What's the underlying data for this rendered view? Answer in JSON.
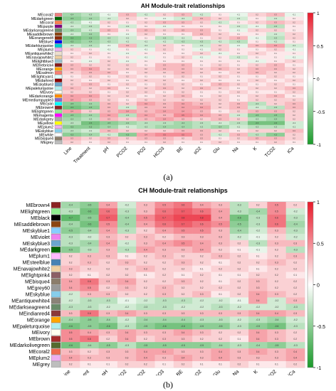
{
  "figure": {
    "caption_a": "(a)",
    "caption_b": "(b)"
  },
  "chart_data": [
    {
      "type": "heatmap",
      "title": "AH Module-trait relationships",
      "xlabel": "",
      "ylabel": "",
      "columns": [
        "Line",
        "Treatment",
        "pH",
        "PCO2",
        "PO2",
        "HCO3",
        "BE",
        "sO2",
        "Glu",
        "Na",
        "K",
        "TCO2",
        "iCa"
      ],
      "rows": [
        "MEcoral2",
        "MEdarkgreen",
        "MEcoral",
        "MEpurple",
        "MEdarkseagreen4",
        "MEsaddlebrown",
        "MEorangered4",
        "MEblue2",
        "MEdarkturquoise",
        "MEplum3",
        "MEantiquewhite2",
        "MEnavajowhite2",
        "MElightblue3",
        "MEfirebrick4",
        "MEorange",
        "MEsalmon",
        "MElightcyan1",
        "MEdarkred",
        "MEskyblue3",
        "MEpaleturquoise",
        "MEivory",
        "MEdarkorange",
        "MEmediumpurple3",
        "MEcyan",
        "MEbrown4",
        "MElightgreen",
        "MEmagenta",
        "MEdarkgrey",
        "MEyellow",
        "MEplum2",
        "MEskyblue",
        "MEwhite",
        "MEbisque4",
        "MEgrey"
      ],
      "row_colors": [
        "#F08080",
        "#006400",
        "#FF7F50",
        "#800080",
        "#698B69",
        "#8B4513",
        "#8B2500",
        "#0000EE",
        "#00CED1",
        "#EEAEEE",
        "#EEDFCC",
        "#EECFA1",
        "#9AC0CD",
        "#8B1A1A",
        "#FFA500",
        "#FA8072",
        "#E0FFFF",
        "#8B0000",
        "#6CA6CD",
        "#AFEEEE",
        "#FFFFF0",
        "#FF8C00",
        "#8968CD",
        "#00FFFF",
        "#8B2323",
        "#90EE90",
        "#FF00FF",
        "#A9A9A9",
        "#FFFF00",
        "#EEAEEE",
        "#87CEEB",
        "#FFFFFF",
        "#8B7D6B",
        "#BEBEBE"
      ],
      "scale": {
        "min": -1,
        "max": 1,
        "ticks": [
          1,
          0.5,
          0,
          -0.5,
          -1
        ],
        "colors": [
          "#1a9a2a",
          "#ffffff",
          "#e8192a"
        ]
      },
      "values": [
        [
          -0.4,
          -0.3,
          -0.1,
          0.3,
          -0.2,
          0.2,
          0.3,
          -0.2,
          0.1,
          -0.1,
          0.2,
          0.3,
          -0.1
        ],
        [
          -0.5,
          -0.4,
          -0.2,
          0.2,
          0.1,
          -0.1,
          -0.2,
          0.3,
          0.2,
          -0.2,
          0.1,
          -0.2,
          0.1
        ],
        [
          -0.3,
          -0.1,
          0.2,
          0.1,
          0.2,
          0.3,
          0.3,
          0.2,
          -0.2,
          0.1,
          0.2,
          0.3,
          0.2
        ],
        [
          -0.2,
          -0.3,
          0.1,
          -0.2,
          0.1,
          -0.1,
          0.1,
          0.1,
          0.1,
          -0.2,
          -0.1,
          -0.3,
          0.1
        ],
        [
          -0.4,
          -0.2,
          0.3,
          0.1,
          0.3,
          0.2,
          0.3,
          0.3,
          0.1,
          -0.1,
          0.2,
          0.2,
          0.1
        ],
        [
          -0.2,
          -0.4,
          0.1,
          -0.1,
          0.2,
          0.1,
          0.1,
          0.3,
          0.2,
          0.1,
          0.1,
          -0.2,
          0.2
        ],
        [
          -0.6,
          -0.5,
          -0.3,
          -0.2,
          0.1,
          -0.3,
          -0.2,
          0.1,
          0.2,
          0.3,
          -0.1,
          -0.3,
          0.2
        ],
        [
          -0.5,
          -0.4,
          -0.3,
          -0.2,
          -0.2,
          -0.2,
          -0.3,
          -0.3,
          -0.2,
          -0.3,
          0.1,
          -0.2,
          0.1
        ],
        [
          -0.2,
          -0.3,
          -0.1,
          0.3,
          -0.2,
          0.2,
          0.1,
          -0.2,
          0.2,
          -0.1,
          0.3,
          0.4,
          -0.2
        ],
        [
          0.2,
          0.1,
          -0.1,
          0.1,
          -0.1,
          0.2,
          0.1,
          -0.1,
          0.2,
          0.1,
          0.1,
          0.2,
          -0.1
        ],
        [
          0.1,
          0.2,
          0.1,
          -0.1,
          0.1,
          0.1,
          0.1,
          0.2,
          -0.1,
          0.1,
          0.2,
          0.1,
          0.1
        ],
        [
          0.2,
          0.1,
          0.1,
          0.1,
          -0.1,
          0.1,
          0.2,
          -0.1,
          0.1,
          -0.2,
          0.1,
          0.1,
          -0.1
        ],
        [
          0.1,
          -0.1,
          0.2,
          -0.1,
          0.1,
          0.1,
          0.1,
          0.1,
          0.1,
          0.1,
          -0.1,
          0.1,
          0.2
        ],
        [
          0.3,
          0.2,
          0.2,
          0.2,
          0.1,
          0.3,
          0.3,
          0.1,
          0.2,
          0.1,
          0.2,
          0.3,
          0.1
        ],
        [
          0.3,
          0.4,
          0.2,
          0.2,
          0.2,
          0.3,
          0.3,
          0.2,
          0.3,
          0.2,
          0.3,
          0.3,
          0.2
        ],
        [
          0.2,
          0.3,
          0.3,
          0.1,
          0.2,
          0.2,
          0.3,
          0.2,
          0.1,
          0.2,
          0.3,
          0.2,
          0.2
        ],
        [
          0.1,
          0.2,
          0.1,
          0.2,
          0.1,
          0.1,
          0.2,
          0.1,
          0.2,
          0.1,
          0.1,
          0.2,
          0.1
        ],
        [
          0.2,
          0.1,
          0.2,
          0.1,
          0.2,
          0.2,
          0.1,
          0.2,
          0.1,
          0.1,
          0.2,
          0.1,
          0.2
        ],
        [
          0.2,
          0.3,
          0.1,
          0.2,
          0.1,
          0.2,
          0.2,
          0.1,
          0.3,
          0.2,
          0.1,
          0.2,
          0.1
        ],
        [
          0.3,
          0.2,
          0.3,
          0.1,
          0.2,
          0.3,
          0.2,
          0.3,
          0.2,
          0.1,
          0.2,
          0.2,
          0.3
        ],
        [
          0.2,
          0.2,
          0.1,
          0.2,
          0.2,
          0.1,
          0.2,
          0.1,
          0.1,
          0.2,
          0.1,
          0.1,
          0.2
        ],
        [
          0.4,
          0.4,
          0.2,
          0.2,
          0.1,
          0.2,
          0.3,
          0.1,
          0.2,
          0.1,
          0.2,
          0.3,
          0.1
        ],
        [
          0.4,
          0.3,
          0.2,
          0.1,
          0.2,
          0.2,
          0.2,
          0.2,
          0.2,
          0.1,
          0.2,
          0.2,
          0.2
        ],
        [
          -0.5,
          -0.4,
          0.3,
          0.2,
          0.4,
          0.3,
          0.4,
          0.3,
          0.2,
          0.3,
          -0.3,
          0.2,
          0.3
        ],
        [
          -0.6,
          -0.5,
          0.3,
          -0.2,
          0.3,
          0.3,
          0.4,
          0.4,
          0.2,
          0.3,
          -0.2,
          -0.3,
          0.3
        ],
        [
          0.4,
          0.2,
          0.3,
          0.4,
          0.3,
          0.4,
          0.4,
          0.3,
          0.1,
          0.2,
          0.3,
          0.3,
          0.2
        ],
        [
          -0.5,
          -0.4,
          0.4,
          -0.3,
          0.4,
          0.3,
          0.5,
          0.4,
          0.3,
          -0.2,
          -0.5,
          -0.5,
          0.2
        ],
        [
          -0.4,
          -0.3,
          0.3,
          0.2,
          0.3,
          0.4,
          0.3,
          0.2,
          0.3,
          0.2,
          -0.3,
          -0.4,
          0.2
        ],
        [
          -0.3,
          -0.6,
          -0.5,
          -0.4,
          -0.3,
          -0.3,
          -0.4,
          -0.3,
          -0.2,
          -0.3,
          -0.6,
          -0.6,
          -0.2
        ],
        [
          -0.5,
          -0.5,
          -0.4,
          -0.2,
          -0.3,
          -0.4,
          -0.4,
          -0.3,
          -0.4,
          -0.2,
          -0.3,
          -0.3,
          -0.2
        ],
        [
          -0.3,
          -0.2,
          0.3,
          0.2,
          0.2,
          0.2,
          0.3,
          0.3,
          0.2,
          0.1,
          0.2,
          0.2,
          0.3
        ],
        [
          -0.5,
          -0.4,
          -0.2,
          -0.5,
          0.4,
          0.5,
          0.5,
          0.3,
          -0.2,
          0.3,
          -0.3,
          -0.5,
          0.2
        ],
        [
          0.3,
          0.2,
          0.3,
          0.2,
          0.3,
          0.3,
          0.2,
          0.3,
          0.1,
          0.2,
          0.3,
          0.3,
          0.2
        ],
        [
          0.2,
          0.1,
          0.2,
          0.1,
          0.1,
          0.2,
          0.1,
          0.1,
          0.2,
          0.1,
          0.1,
          0.2,
          0.1
        ]
      ]
    },
    {
      "type": "heatmap",
      "title": "CH Module-trait relationships",
      "xlabel": "",
      "ylabel": "",
      "columns": [
        "Line",
        "Treatment",
        "pH",
        "PCO2",
        "PO2",
        "HCO3",
        "BE",
        "sO2",
        "Glu",
        "Na",
        "K",
        "TCO2",
        "iCa"
      ],
      "rows": [
        "MEbrown4",
        "MElightgreen",
        "MEblack",
        "MEsaddlebrown",
        "MEskyblue1",
        "MEviolet",
        "MEskyblue3",
        "MEdarkgreen",
        "MEplum1",
        "MEsteelblue",
        "MEnavajowhite2",
        "MElightpink4",
        "MEbisque4",
        "MEgrey60",
        "MEskyblue",
        "MEantiquewhite4",
        "MEdarkseagreen4",
        "MEindianred4",
        "MEorange",
        "MEpaleturquoise",
        "MEivory",
        "MEbrown",
        "MEdarkolivegreen",
        "MEcoral2",
        "MEplum2",
        "MEgrey"
      ],
      "row_colors": [
        "#8B2323",
        "#90EE90",
        "#000000",
        "#8B4513",
        "#87CEFF",
        "#EE82EE",
        "#6CA6CD",
        "#006400",
        "#FFBBFF",
        "#4682B4",
        "#EECFA1",
        "#8B5F65",
        "#8B7D6B",
        "#999999",
        "#87CEEB",
        "#8B8378",
        "#698B69",
        "#8B3A3A",
        "#FFA500",
        "#AFEEEE",
        "#FFFFF0",
        "#A52A2A",
        "#556B2F",
        "#EE6A50",
        "#EEAEEE",
        "#BEBEBE"
      ],
      "scale": {
        "min": -1,
        "max": 1,
        "ticks": [
          1,
          0.5,
          0,
          -0.5,
          -1
        ],
        "colors": [
          "#1a9a2a",
          "#ffffff",
          "#e8192a"
        ]
      },
      "values": [
        [
          -0.4,
          -0.5,
          0.4,
          -0.2,
          0.3,
          0.5,
          0.6,
          0.4,
          0.3,
          -0.3,
          0.2,
          0.5,
          0.2
        ],
        [
          -0.3,
          -0.6,
          0.6,
          -0.3,
          0.3,
          0.6,
          0.7,
          0.6,
          0.4,
          -0.3,
          -0.4,
          0.5,
          -0.2
        ],
        [
          -0.7,
          -0.5,
          0.7,
          -0.4,
          0.5,
          0.7,
          0.8,
          0.8,
          0.4,
          -0.6,
          -0.3,
          0.6,
          -0.3
        ],
        [
          -0.4,
          -0.6,
          0.5,
          -0.4,
          0.4,
          0.6,
          0.7,
          0.6,
          0.5,
          -0.5,
          -0.3,
          0.6,
          -0.4
        ],
        [
          -0.5,
          -0.4,
          0.4,
          -0.3,
          0.2,
          0.4,
          0.5,
          0.5,
          0.3,
          -0.4,
          -0.2,
          0.3,
          -0.3
        ],
        [
          -0.3,
          -0.2,
          0.3,
          0.2,
          0.3,
          0.2,
          0.3,
          0.3,
          0.3,
          -0.2,
          -0.1,
          0.2,
          -0.2
        ],
        [
          -0.3,
          -0.4,
          0.4,
          -0.2,
          0.3,
          0.4,
          0.5,
          0.4,
          0.3,
          0.2,
          -0.3,
          0.3,
          0.3
        ],
        [
          -0.5,
          -0.3,
          0.3,
          -0.3,
          0.4,
          0.3,
          0.3,
          0.4,
          0.2,
          0.1,
          -0.1,
          0.2,
          -0.3
        ],
        [
          0.2,
          0.3,
          0.3,
          0.1,
          0.2,
          0.3,
          0.2,
          0.2,
          0.3,
          0.2,
          0.1,
          0.2,
          0.3
        ],
        [
          0.2,
          0.3,
          0.2,
          0.3,
          0.2,
          0.2,
          0.3,
          0.2,
          0.1,
          0.2,
          0.2,
          0.3,
          0.2
        ],
        [
          0.3,
          0.2,
          0.2,
          0.2,
          0.3,
          0.2,
          0.2,
          0.1,
          0.2,
          0.2,
          0.1,
          0.2,
          0.2
        ],
        [
          0.2,
          0.1,
          0.2,
          0.2,
          0.1,
          0.2,
          0.1,
          0.2,
          0.1,
          0.1,
          0.2,
          0.2,
          0.1
        ],
        [
          0.4,
          0.6,
          0.3,
          0.4,
          0.2,
          0.2,
          0.3,
          0.2,
          0.1,
          0.2,
          0.3,
          0.2,
          0.2
        ],
        [
          0.4,
          0.5,
          0.2,
          0.3,
          0.2,
          0.3,
          0.2,
          0.2,
          0.2,
          0.2,
          0.3,
          0.2,
          0.2
        ],
        [
          -0.2,
          0.3,
          0.3,
          0.2,
          0.2,
          0.3,
          0.2,
          0.3,
          0.1,
          0.2,
          0.4,
          0.3,
          0.2
        ],
        [
          -0.2,
          -0.3,
          -0.3,
          -0.1,
          -0.2,
          -0.3,
          -0.3,
          -0.2,
          -0.2,
          -0.1,
          0.4,
          -0.2,
          0.3
        ],
        [
          -0.3,
          -0.3,
          -0.2,
          -0.2,
          -0.3,
          -0.3,
          -0.2,
          -0.2,
          -0.3,
          -0.2,
          -0.2,
          -0.2,
          -0.3
        ],
        [
          0.3,
          0.6,
          0.3,
          0.4,
          0.3,
          0.3,
          0.3,
          0.3,
          0.3,
          0.3,
          0.4,
          0.4,
          0.3
        ],
        [
          -0.4,
          -0.5,
          -0.4,
          -0.2,
          -0.4,
          -0.4,
          -0.4,
          -0.3,
          -0.3,
          -0.2,
          -0.3,
          -0.4,
          -0.2
        ],
        [
          -0.6,
          -0.5,
          -0.6,
          -0.3,
          -0.5,
          -0.6,
          -0.6,
          -0.5,
          -0.5,
          -0.3,
          -0.5,
          -0.6,
          -0.3
        ],
        [
          0.5,
          0.4,
          0.3,
          0.4,
          0.3,
          0.3,
          0.4,
          0.3,
          0.2,
          0.2,
          0.4,
          0.3,
          0.2
        ],
        [
          0.5,
          0.6,
          0.2,
          0.4,
          0.2,
          0.3,
          0.3,
          0.2,
          0.2,
          0.1,
          0.4,
          0.3,
          0.2
        ],
        [
          -0.6,
          -0.4,
          -0.5,
          -0.3,
          -0.5,
          -0.5,
          -0.5,
          -0.5,
          -0.4,
          -0.3,
          -0.4,
          -0.5,
          -0.3
        ],
        [
          0.3,
          0.2,
          0.3,
          0.3,
          0.4,
          0.4,
          0.3,
          0.3,
          0.4,
          0.3,
          0.4,
          0.3,
          0.4
        ],
        [
          0.4,
          0.3,
          0.3,
          0.3,
          0.4,
          0.3,
          0.4,
          0.3,
          0.4,
          0.3,
          0.3,
          0.3,
          0.4
        ],
        [
          0.2,
          0.1,
          0.1,
          0.2,
          0.2,
          0.1,
          0.2,
          0.1,
          0.1,
          0.2,
          0.1,
          0.1,
          0.2
        ]
      ]
    }
  ]
}
